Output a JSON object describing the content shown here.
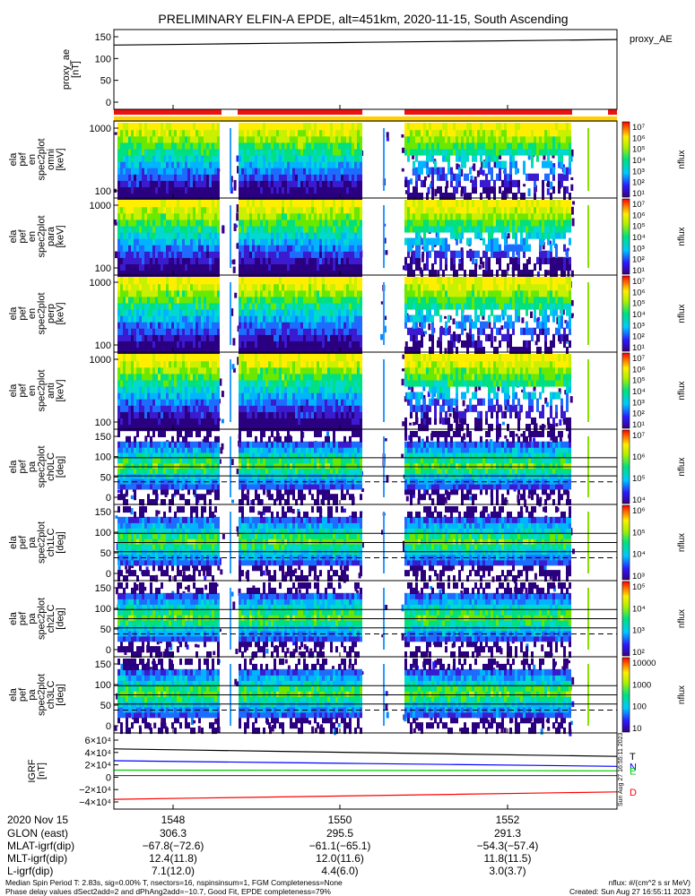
{
  "header": {
    "title": "PRELIMINARY ELFIN-A EPDE, alt=451km, 2020-11-15, South Ascending"
  },
  "chart_data": {
    "type": "heatmap",
    "time_ticks": [
      "1548",
      "1550",
      "1552"
    ],
    "panels": [
      {
        "id": "proxy_ae",
        "kind": "line",
        "ylabel": [
          "proxy_ae",
          "[nT]"
        ],
        "yticks": [
          "150",
          "100",
          "50",
          "0"
        ],
        "ylim": [
          0,
          150
        ],
        "legend": "proxy_AE",
        "series": [
          {
            "values": [
              128,
              130,
              132,
              134,
              136,
              138,
              140
            ]
          }
        ]
      },
      {
        "id": "energy_omni",
        "kind": "spectrogram",
        "ylabel": [
          "ela",
          "pef",
          "en",
          "spec2plot",
          "omni",
          "[keV]"
        ],
        "yticks": [
          "1000",
          "100"
        ],
        "cbar_ticks": [
          "10⁷",
          "10⁶",
          "10⁵",
          "10⁴",
          "10³",
          "10²",
          "10¹"
        ],
        "cbar_label": "nflux"
      },
      {
        "id": "energy_para",
        "kind": "spectrogram",
        "ylabel": [
          "ela",
          "pef",
          "en",
          "spec2plot",
          "para",
          "[keV]"
        ],
        "yticks": [
          "1000",
          "100"
        ],
        "cbar_ticks": [
          "10⁷",
          "10⁶",
          "10⁵",
          "10⁴",
          "10³",
          "10²",
          "10¹"
        ],
        "cbar_label": "nflux"
      },
      {
        "id": "energy_perp",
        "kind": "spectrogram",
        "ylabel": [
          "ela",
          "pef",
          "en",
          "spec2plot",
          "perp",
          "[keV]"
        ],
        "yticks": [
          "1000",
          "100"
        ],
        "cbar_ticks": [
          "10⁷",
          "10⁶",
          "10⁵",
          "10⁴",
          "10³",
          "10²",
          "10¹"
        ],
        "cbar_label": "nflux"
      },
      {
        "id": "energy_anti",
        "kind": "spectrogram",
        "ylabel": [
          "ela",
          "pef",
          "en",
          "spec2plot",
          "anti",
          "[keV]"
        ],
        "yticks": [
          "1000",
          "100"
        ],
        "cbar_ticks": [
          "10⁷",
          "10⁶",
          "10⁵",
          "10⁴",
          "10³",
          "10²",
          "10¹"
        ],
        "cbar_label": "nflux"
      },
      {
        "id": "pa_ch0",
        "kind": "spectrogram",
        "ylabel": [
          "ela",
          "pef",
          "pa",
          "spec2plot",
          "ch0LC",
          "[deg]"
        ],
        "yticks": [
          "150",
          "100",
          "50",
          "0"
        ],
        "cbar_ticks": [
          "10⁷",
          "10⁶",
          "10⁵",
          "10⁴"
        ],
        "cbar_label": "nflux"
      },
      {
        "id": "pa_ch1",
        "kind": "spectrogram",
        "ylabel": [
          "ela",
          "pef",
          "pa",
          "spec2plot",
          "ch1LC",
          "[deg]"
        ],
        "yticks": [
          "150",
          "100",
          "50",
          "0"
        ],
        "cbar_ticks": [
          "10⁶",
          "10⁵",
          "10⁴",
          "10³"
        ],
        "cbar_label": "nflux"
      },
      {
        "id": "pa_ch2",
        "kind": "spectrogram",
        "ylabel": [
          "ela",
          "pef",
          "pa",
          "spec2plot",
          "ch2LC",
          "[deg]"
        ],
        "yticks": [
          "150",
          "100",
          "50",
          "0"
        ],
        "cbar_ticks": [
          "10⁵",
          "10⁴",
          "10³",
          "10²"
        ],
        "cbar_label": "nflux"
      },
      {
        "id": "pa_ch3",
        "kind": "spectrogram",
        "ylabel": [
          "ela",
          "pef",
          "pa",
          "spec2plot",
          "ch3LC",
          "[deg]"
        ],
        "yticks": [
          "150",
          "100",
          "50",
          "0"
        ],
        "cbar_ticks": [
          "10000",
          "1000",
          "100",
          "10"
        ],
        "cbar_label": "nflux"
      },
      {
        "id": "igrf",
        "kind": "line",
        "ylabel": [
          "IGRF",
          "[nT]"
        ],
        "yticks": [
          "6×10⁴",
          "4×10⁴",
          "2×10⁴",
          "0",
          "−2×10⁴",
          "−4×10⁴"
        ],
        "ylim": [
          -45000,
          60000
        ],
        "series": [
          {
            "name": "T",
            "color": "#000000",
            "values": [
              43000,
              41000,
              39000,
              37000,
              35000,
              33000,
              31000
            ]
          },
          {
            "name": "N",
            "color": "#0000ff",
            "values": [
              24000,
              22500,
              21000,
              19500,
              18000,
              16500,
              15000
            ]
          },
          {
            "name": "E",
            "color": "#00cc00",
            "values": [
              9000,
              8800,
              8600,
              8400,
              8200,
              8000,
              7800
            ]
          },
          {
            "name": "D",
            "color": "#ff0000",
            "values": [
              -38000,
              -36000,
              -34000,
              -32000,
              -30000,
              -28000,
              -26000
            ]
          }
        ]
      }
    ]
  },
  "timestamp_vertical": "Sun Aug 27 16:55:11 2023",
  "ephemeris": {
    "date_label": "2020 Nov 15",
    "rows": [
      {
        "label": "GLON (east)",
        "values": [
          "306.3",
          "295.5",
          "291.3"
        ]
      },
      {
        "label": "MLAT-igrf(dip)",
        "values": [
          "−67.8(−72.6)",
          "−61.1(−65.1)",
          "−54.3(−57.4)"
        ]
      },
      {
        "label": "MLT-igrf(dip)",
        "values": [
          "12.4(11.8)",
          "12.0(11.6)",
          "11.8(11.5)"
        ]
      },
      {
        "label": "L-igrf(dip)",
        "values": [
          "7.1(12.0)",
          "4.4(6.0)",
          "3.0(3.7)"
        ]
      }
    ]
  },
  "footer": {
    "line1": "Median Spin Period T: 2.83s, sig=0.00% T, nsectors=16, nspinsinsum=1, FGM Completeness=None",
    "line2": "Phase delay values dSect2add=2 and dPhAng2add=−10.7, Good Fit, EPDE completeness=79%",
    "units": "nflux: #/(cm^2 s sr MeV)",
    "created": "Created: Sun Aug 27 16:55:11 2023"
  }
}
